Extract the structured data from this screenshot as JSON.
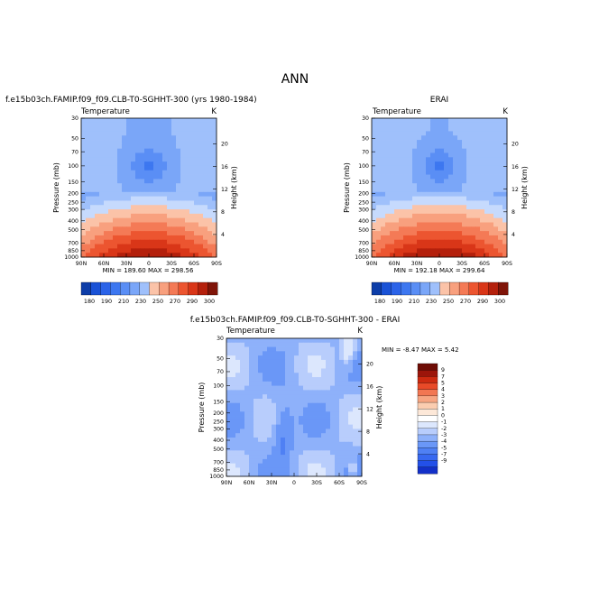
{
  "figure_title": "ANN",
  "chart_data": [
    {
      "type": "heatmap",
      "title": "f.e15b03ch.FAMIP.f09_f09.CLB-T0-SGHHT-300 (yrs 1980-1984)",
      "left_label": "Temperature",
      "units": "K",
      "xlabel": "",
      "ylabel": "Pressure (mb)",
      "ylabel_right": "Height (km)",
      "x_ticks": [
        "90N",
        "60N",
        "30N",
        "0",
        "30S",
        "60S",
        "90S"
      ],
      "y_ticks": [
        "30",
        "50",
        "70",
        "100",
        "150",
        "200",
        "250",
        "300",
        "400",
        "500",
        "700",
        "850",
        "1000"
      ],
      "y_ticks_right": [
        "20",
        "16",
        "12",
        "8",
        "4"
      ],
      "min_max_text": "MIN = 189.60   MAX = 298.56",
      "colorbar_labels": [
        "180",
        "190",
        "210",
        "230",
        "250",
        "270",
        "290",
        "300"
      ],
      "min": 189.6,
      "max": 298.56,
      "levels": [
        180,
        190,
        200,
        210,
        220,
        230,
        240,
        250,
        260,
        270,
        280,
        290,
        300
      ]
    },
    {
      "type": "heatmap",
      "title": "ERAI",
      "left_label": "Temperature",
      "units": "K",
      "xlabel": "",
      "ylabel": "Pressure (mb)",
      "ylabel_right": "Height (km)",
      "x_ticks": [
        "90N",
        "60N",
        "30N",
        "0",
        "30S",
        "60S",
        "90S"
      ],
      "y_ticks": [
        "30",
        "50",
        "70",
        "100",
        "150",
        "200",
        "250",
        "300",
        "400",
        "500",
        "700",
        "850",
        "1000"
      ],
      "y_ticks_right": [
        "20",
        "16",
        "12",
        "8",
        "4"
      ],
      "min_max_text": "MIN = 192.18   MAX = 299.64",
      "colorbar_labels": [
        "180",
        "190",
        "210",
        "230",
        "250",
        "270",
        "290",
        "300"
      ],
      "min": 192.18,
      "max": 299.64,
      "levels": [
        180,
        190,
        200,
        210,
        220,
        230,
        240,
        250,
        260,
        270,
        280,
        290,
        300
      ]
    },
    {
      "type": "heatmap",
      "title": "f.e15b03ch.FAMIP.f09_f09.CLB-T0-SGHHT-300 - ERAI",
      "left_label": "Temperature",
      "units": "K",
      "xlabel": "",
      "ylabel": "Pressure (mb)",
      "ylabel_right": "Height (km)",
      "x_ticks": [
        "90N",
        "60N",
        "30N",
        "0",
        "30S",
        "60S",
        "90S"
      ],
      "y_ticks": [
        "30",
        "50",
        "70",
        "100",
        "150",
        "200",
        "250",
        "300",
        "400",
        "500",
        "700",
        "850",
        "1000"
      ],
      "y_ticks_right": [
        "20",
        "16",
        "12",
        "8",
        "4"
      ],
      "min_max_text": "MIN =  -8.47   MAX =    5.42",
      "colorbar_labels": [
        "9",
        "7",
        "5",
        "4",
        "3",
        "2",
        "1",
        "0",
        "-1",
        "-2",
        "-3",
        "-4",
        "-5",
        "-7",
        "-9"
      ],
      "min": -8.47,
      "max": 5.42,
      "levels": [
        -9,
        -7,
        -5,
        -4,
        -3,
        -2,
        -1,
        0,
        1,
        2,
        3,
        4,
        5,
        7,
        9
      ]
    }
  ],
  "colors": {
    "temp_scale": [
      "#08306b",
      "#0d3da8",
      "#1a52d6",
      "#2b63e8",
      "#3d77f0",
      "#5a8ef5",
      "#7aa6f8",
      "#9fc0fb",
      "#c6dafd",
      "#e8eefb",
      "#fde2d2",
      "#fbc3a8",
      "#f8a07e",
      "#f47a56",
      "#ec5530",
      "#d93618",
      "#b4200c",
      "#7f1408"
    ],
    "diff_scale": [
      "#0a1a8c",
      "#1330c8",
      "#2350e8",
      "#3768f0",
      "#4f80f4",
      "#6a97f7",
      "#8eb1fa",
      "#b8cdfc",
      "#dce7fd",
      "#ffffff",
      "#fde8d8",
      "#fbcdb0",
      "#f7a582",
      "#f27652",
      "#e84a28",
      "#cc2a10",
      "#9c150a",
      "#6e0c05"
    ],
    "background": "#ffffff"
  }
}
